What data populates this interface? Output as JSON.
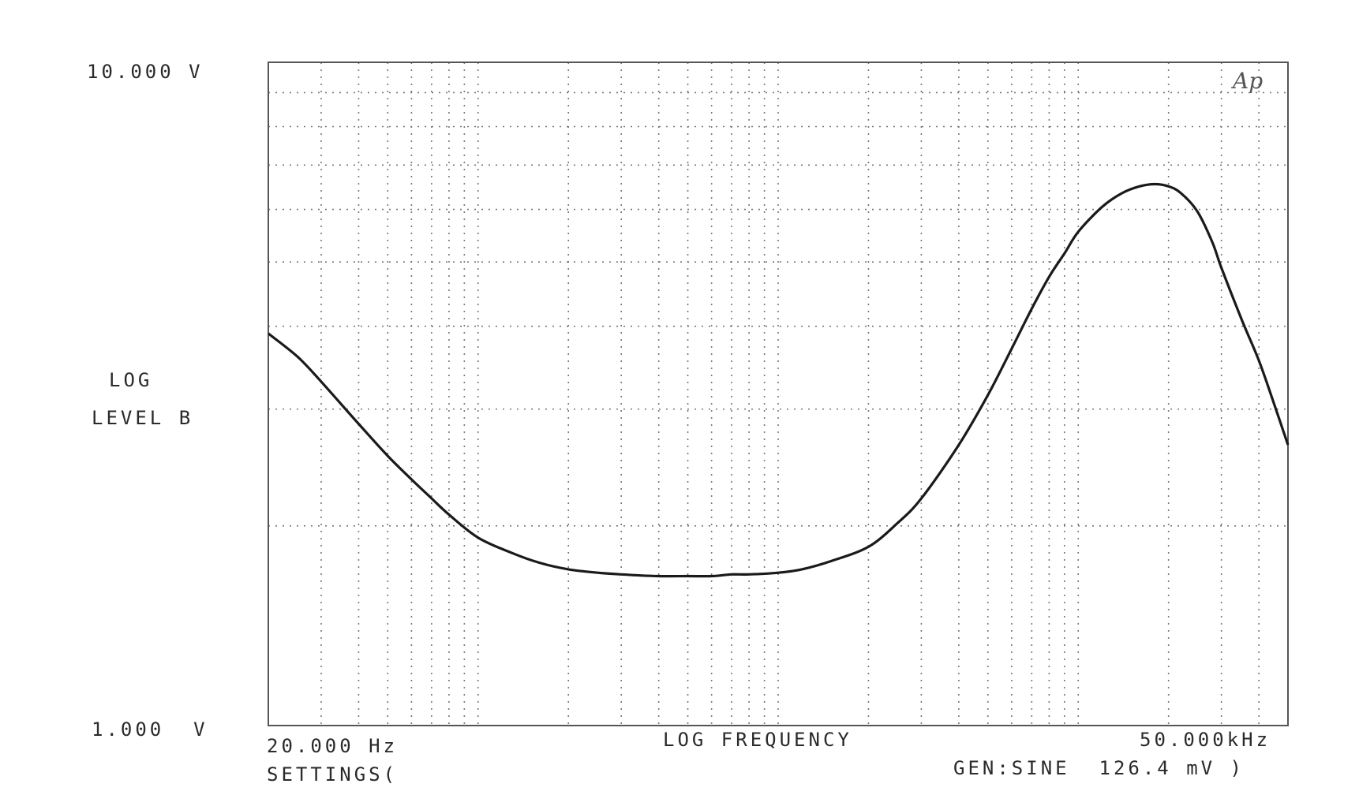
{
  "chart_data": {
    "type": "line",
    "title": "",
    "logo": "Ap",
    "ylabel_line1": "LOG",
    "ylabel_line2": "LEVEL B",
    "xlabel": "LOG FREQUENCY",
    "x_scale": "log",
    "y_scale": "log",
    "xlim": [
      20,
      50000
    ],
    "ylim": [
      1.0,
      10.0
    ],
    "x_min_label": "20.000 Hz",
    "x_max_label": "50.000kHz",
    "y_min_label": "1.000  V",
    "y_max_label": "10.000 V",
    "grid": true,
    "x_grid_values": [
      20,
      30,
      40,
      50,
      60,
      70,
      80,
      90,
      100,
      200,
      300,
      400,
      500,
      600,
      700,
      800,
      900,
      1000,
      2000,
      3000,
      4000,
      5000,
      6000,
      7000,
      8000,
      9000,
      10000,
      20000,
      30000,
      40000,
      50000
    ],
    "y_grid_values": [
      1,
      2,
      3,
      4,
      5,
      6,
      7,
      8,
      9,
      10
    ],
    "footer_left": "SETTINGS(",
    "footer_right": "GEN:SINE  126.4 mV )",
    "line_color": "#1a1a1a",
    "series": [
      {
        "name": "",
        "x": [
          20,
          25,
          30,
          40,
          50,
          60,
          70,
          80,
          100,
          130,
          160,
          200,
          250,
          300,
          400,
          500,
          600,
          700,
          800,
          1000,
          1200,
          1500,
          2000,
          2500,
          3000,
          4000,
          5000,
          6000,
          7000,
          8000,
          9000,
          10000,
          12000,
          14000,
          16000,
          18000,
          20000,
          22000,
          25000,
          28000,
          30000,
          35000,
          40000,
          45000,
          50000
        ],
        "y": [
          3.9,
          3.6,
          3.3,
          2.85,
          2.55,
          2.35,
          2.2,
          2.08,
          1.92,
          1.82,
          1.76,
          1.72,
          1.7,
          1.69,
          1.68,
          1.68,
          1.68,
          1.69,
          1.69,
          1.7,
          1.72,
          1.77,
          1.86,
          2.02,
          2.2,
          2.65,
          3.15,
          3.7,
          4.25,
          4.75,
          5.15,
          5.55,
          6.05,
          6.35,
          6.5,
          6.55,
          6.5,
          6.35,
          5.95,
          5.35,
          4.9,
          4.1,
          3.55,
          3.05,
          2.65
        ]
      }
    ]
  }
}
